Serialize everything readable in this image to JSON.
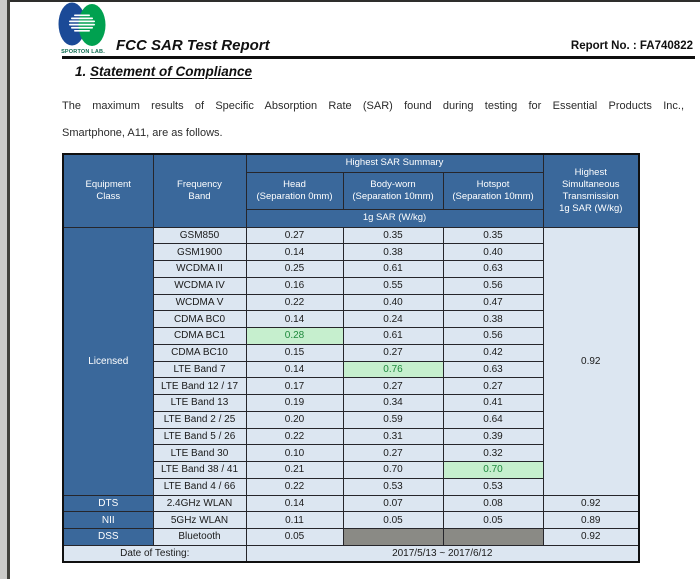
{
  "header": {
    "logo": {
      "icon": "sporton-logo",
      "label": "SPORTON LAB.",
      "blue": "#1b4a97",
      "green": "#00a150"
    },
    "title": "FCC SAR Test Report",
    "report_no": "Report No. : FA740822"
  },
  "section": {
    "heading_number": "1.",
    "heading_text": "Statement of Compliance",
    "paragraph_lines": [
      "The maximum results of Specific Absorption Rate (SAR) found during testing for Essential Products Inc.,",
      "Smartphone, A11, are as follows."
    ]
  },
  "table": {
    "colors": {
      "header_bg": "#3a689b",
      "header_text": "#ffffff",
      "cell_bg": "#dce6f1",
      "highlight_bg": "#c6efce",
      "highlight_text": "#1f8a3d",
      "gray_bg": "#8a8a85"
    },
    "headers": {
      "equipment_class": "Equipment\nClass",
      "frequency_band": "Frequency\nBand",
      "sar_summary": "Highest SAR Summary",
      "head": "Head\n(Separation 0mm)",
      "body_worn": "Body-worn\n(Separation 10mm)",
      "hotspot": "Hotspot\n(Separation 10mm)",
      "sar_unit": "1g SAR (W/kg)",
      "simultaneous": "Highest\nSimultaneous\nTransmission\n1g SAR (W/kg)"
    },
    "groups": [
      {
        "equipment_class": "Licensed",
        "simultaneous": "0.92",
        "rows": [
          {
            "band": "GSM850",
            "cells": [
              {
                "t": "0.27"
              },
              {
                "t": "0.35"
              },
              {
                "t": "0.35"
              }
            ]
          },
          {
            "band": "GSM1900",
            "cells": [
              {
                "t": "0.14"
              },
              {
                "t": "0.38"
              },
              {
                "t": "0.40"
              }
            ]
          },
          {
            "band": "WCDMA II",
            "cells": [
              {
                "t": "0.25"
              },
              {
                "t": "0.61"
              },
              {
                "t": "0.63"
              }
            ]
          },
          {
            "band": "WCDMA IV",
            "cells": [
              {
                "t": "0.16"
              },
              {
                "t": "0.55"
              },
              {
                "t": "0.56"
              }
            ]
          },
          {
            "band": "WCDMA V",
            "cells": [
              {
                "t": "0.22"
              },
              {
                "t": "0.40"
              },
              {
                "t": "0.47"
              }
            ]
          },
          {
            "band": "CDMA BC0",
            "cells": [
              {
                "t": "0.14"
              },
              {
                "t": "0.24"
              },
              {
                "t": "0.38"
              }
            ]
          },
          {
            "band": "CDMA BC1",
            "cells": [
              {
                "t": "0.28",
                "s": "highlight"
              },
              {
                "t": "0.61"
              },
              {
                "t": "0.56"
              }
            ]
          },
          {
            "band": "CDMA BC10",
            "cells": [
              {
                "t": "0.15"
              },
              {
                "t": "0.27"
              },
              {
                "t": "0.42"
              }
            ]
          },
          {
            "band": "LTE Band 7",
            "cells": [
              {
                "t": "0.14"
              },
              {
                "t": "0.76",
                "s": "highlight"
              },
              {
                "t": "0.63"
              }
            ]
          },
          {
            "band": "LTE Band 12 / 17",
            "cells": [
              {
                "t": "0.17"
              },
              {
                "t": "0.27"
              },
              {
                "t": "0.27"
              }
            ]
          },
          {
            "band": "LTE Band 13",
            "cells": [
              {
                "t": "0.19"
              },
              {
                "t": "0.34"
              },
              {
                "t": "0.41"
              }
            ]
          },
          {
            "band": "LTE Band 2 / 25",
            "cells": [
              {
                "t": "0.20"
              },
              {
                "t": "0.59"
              },
              {
                "t": "0.64"
              }
            ]
          },
          {
            "band": "LTE Band 5 / 26",
            "cells": [
              {
                "t": "0.22"
              },
              {
                "t": "0.31"
              },
              {
                "t": "0.39"
              }
            ]
          },
          {
            "band": "LTE Band 30",
            "cells": [
              {
                "t": "0.10"
              },
              {
                "t": "0.27"
              },
              {
                "t": "0.32"
              }
            ]
          },
          {
            "band": "LTE Band 38 / 41",
            "cells": [
              {
                "t": "0.21"
              },
              {
                "t": "0.70"
              },
              {
                "t": "0.70",
                "s": "highlight"
              }
            ]
          },
          {
            "band": "LTE Band 4 / 66",
            "cells": [
              {
                "t": "0.22"
              },
              {
                "t": "0.53"
              },
              {
                "t": "0.53"
              }
            ]
          }
        ]
      },
      {
        "equipment_class": "DTS",
        "simultaneous": "0.92",
        "rows": [
          {
            "band": "2.4GHz WLAN",
            "cells": [
              {
                "t": "0.14"
              },
              {
                "t": "0.07"
              },
              {
                "t": "0.08"
              }
            ]
          }
        ]
      },
      {
        "equipment_class": "NII",
        "simultaneous": "0.89",
        "rows": [
          {
            "band": "5GHz WLAN",
            "cells": [
              {
                "t": "0.11"
              },
              {
                "t": "0.05"
              },
              {
                "t": "0.05"
              }
            ]
          }
        ]
      },
      {
        "equipment_class": "DSS",
        "simultaneous": "0.92",
        "rows": [
          {
            "band": "Bluetooth",
            "cells": [
              {
                "t": "0.05"
              },
              {
                "s": "gray"
              },
              {
                "s": "gray"
              }
            ]
          }
        ]
      }
    ],
    "footer": {
      "label": "Date of Testing:",
      "value": "2017/5/13 ~ 2017/6/12"
    }
  }
}
